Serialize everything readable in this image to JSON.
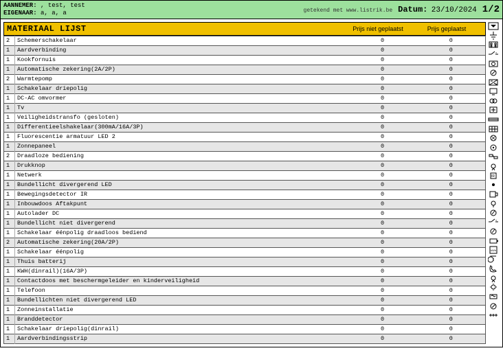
{
  "header": {
    "aannemer_label": "AANNEMER:",
    "aannemer_value": ", test, test",
    "eigenaar_label": "EIGENAAR:",
    "eigenaar_value": "a, a, a",
    "signature": "getekend met www.listrik.be",
    "date_label": "Datum:",
    "date_value": "23/10/2024",
    "page": "1/2",
    "bg_color": "#9de09d"
  },
  "table": {
    "title": "MATERIAAL LIJST",
    "col_price1": "Prijs niet geplaatst",
    "col_price2": "Prijs geplaatst",
    "header_bg": "#f0c000",
    "row_alt_bg": "#e6e6e6",
    "rows": [
      {
        "q": "2",
        "d": "Schemerschakelaar",
        "p1": "0",
        "p2": "0"
      },
      {
        "q": "1",
        "d": "Aardverbinding",
        "p1": "0",
        "p2": "0"
      },
      {
        "q": "1",
        "d": "Kookfornuis",
        "p1": "0",
        "p2": "0"
      },
      {
        "q": "1",
        "d": "Automatische zekering(2A/2P)",
        "p1": "0",
        "p2": "0"
      },
      {
        "q": "2",
        "d": "Warmtepomp",
        "p1": "0",
        "p2": "0"
      },
      {
        "q": "1",
        "d": "Schakelaar driepolig",
        "p1": "0",
        "p2": "0"
      },
      {
        "q": "1",
        "d": "DC-AC omvormer",
        "p1": "0",
        "p2": "0"
      },
      {
        "q": "1",
        "d": "Tv",
        "p1": "0",
        "p2": "0"
      },
      {
        "q": "1",
        "d": "Veiligheidstransfo (gesloten)",
        "p1": "0",
        "p2": "0"
      },
      {
        "q": "1",
        "d": "Differentieelshakelaar(300mA/16A/3P)",
        "p1": "0",
        "p2": "0"
      },
      {
        "q": "1",
        "d": "Fluorescentie armatuur LED 2",
        "p1": "0",
        "p2": "0"
      },
      {
        "q": "1",
        "d": "Zonnepaneel",
        "p1": "0",
        "p2": "0"
      },
      {
        "q": "2",
        "d": "Draadloze bediening",
        "p1": "0",
        "p2": "0"
      },
      {
        "q": "1",
        "d": "Drukknop",
        "p1": "0",
        "p2": "0"
      },
      {
        "q": "1",
        "d": "Netwerk",
        "p1": "0",
        "p2": "0"
      },
      {
        "q": "1",
        "d": "Bundellicht divergerend LED",
        "p1": "0",
        "p2": "0"
      },
      {
        "q": "1",
        "d": "Bewegingsdetector IR",
        "p1": "0",
        "p2": "0"
      },
      {
        "q": "1",
        "d": "Inbouwdoos Aftakpunt",
        "p1": "0",
        "p2": "0"
      },
      {
        "q": "1",
        "d": "Autolader DC",
        "p1": "0",
        "p2": "0"
      },
      {
        "q": "1",
        "d": "Bundellicht niet divergerend",
        "p1": "0",
        "p2": "0"
      },
      {
        "q": "1",
        "d": "Schakelaar éénpolig draadloos bediend",
        "p1": "0",
        "p2": "0"
      },
      {
        "q": "2",
        "d": "Automatische zekering(20A/2P)",
        "p1": "0",
        "p2": "0"
      },
      {
        "q": "1",
        "d": "Schakelaar éénpolig",
        "p1": "0",
        "p2": "0"
      },
      {
        "q": "1",
        "d": "Thuis batterij",
        "p1": "0",
        "p2": "0"
      },
      {
        "q": "1",
        "d": "KWH(dinrail)(16A/3P)",
        "p1": "0",
        "p2": "0"
      },
      {
        "q": "1",
        "d": "Contactdoos met beschermgeleider en kinderveiligheid",
        "p1": "0",
        "p2": "0"
      },
      {
        "q": "1",
        "d": "Telefoon",
        "p1": "0",
        "p2": "0"
      },
      {
        "q": "1",
        "d": "Bundellichten niet divergerend LED",
        "p1": "0",
        "p2": "0"
      },
      {
        "q": "1",
        "d": "Zonneinstallatie",
        "p1": "0",
        "p2": "0"
      },
      {
        "q": "1",
        "d": "Branddetector",
        "p1": "0",
        "p2": "0"
      },
      {
        "q": "1",
        "d": "Schakelaar driepolig(dinrail)",
        "p1": "0",
        "p2": "0"
      },
      {
        "q": "1",
        "d": "Aardverbindingsstrip",
        "p1": "0",
        "p2": "0"
      }
    ]
  },
  "icons": [
    "dropdown",
    "ground",
    "cooktop",
    "breaker",
    "heatpump",
    "switch3",
    "inverter",
    "tv",
    "transfo",
    "diff",
    "fluo",
    "solar",
    "wireless",
    "push",
    "network",
    "ledspot",
    "pir",
    "box",
    "evcharge",
    "spot",
    "sw-wireless",
    "breaker2",
    "sw1",
    "battery",
    "kwh",
    "socket",
    "phone",
    "ledspot2",
    "solarinst",
    "smoke",
    "sw3rail",
    "groundstrip"
  ]
}
